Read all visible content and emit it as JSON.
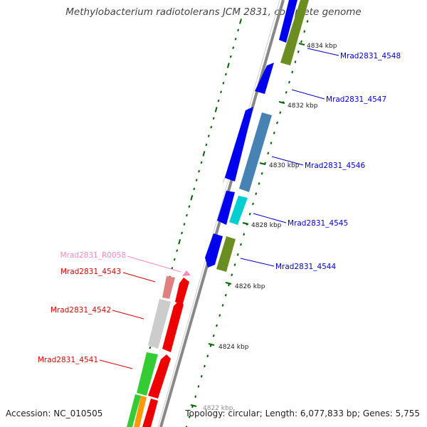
{
  "title": "Methylobacterium radiotolerans JCM 2831, complete genome",
  "footer": {
    "accession": "Accession: NC_010505",
    "topology": "Topology: circular; Length: 6,077,833 bp; Genes: 5,755"
  },
  "colors": {
    "forward_label": "#0000cc",
    "reverse_label": "#dd0000",
    "rna_label": "#ff88bb",
    "tick": "#006600",
    "backbone": "#888888"
  },
  "genes_forward": [
    {
      "id": "Mrad2831_4548",
      "label": "Mrad2831_4548",
      "lane1": "#0000ee",
      "lane2": "#6b8e23"
    },
    {
      "id": "Mrad2831_4547",
      "label": "Mrad2831_4547",
      "lane1": "#0000ee",
      "lane2": null
    },
    {
      "id": "Mrad2831_4546",
      "label": "Mrad2831_4546",
      "lane1": "#0000ee",
      "lane2": "#4682b4"
    },
    {
      "id": "Mrad2831_4545",
      "label": "Mrad2831_4545",
      "lane1": "#0000ee",
      "lane2": "#00ced1"
    },
    {
      "id": "Mrad2831_4544",
      "label": "Mrad2831_4544",
      "lane1": "#0000ee",
      "lane2": "#6b8e23"
    }
  ],
  "genes_reverse": [
    {
      "id": "Mrad2831_R0058",
      "label": "Mrad2831_R0058",
      "lane1": "#ff88bb",
      "lane2": null
    },
    {
      "id": "Mrad2831_4543",
      "label": "Mrad2831_4543",
      "lane1": "#ee0000",
      "lane2": "#e08080"
    },
    {
      "id": "Mrad2831_4542",
      "label": "Mrad2831_4542",
      "lane1": "#ee0000",
      "lane2": "#cccccc"
    },
    {
      "id": "Mrad2831_4541",
      "label": "Mrad2831_4541",
      "lane1": "#ee0000",
      "lane2": "#33cc33"
    }
  ],
  "scale_labels": [
    "4834 kbp",
    "4832 kbp",
    "4830 kbp",
    "4828 kbp",
    "4826 kbp",
    "4824 kbp",
    "4822 kbp"
  ]
}
